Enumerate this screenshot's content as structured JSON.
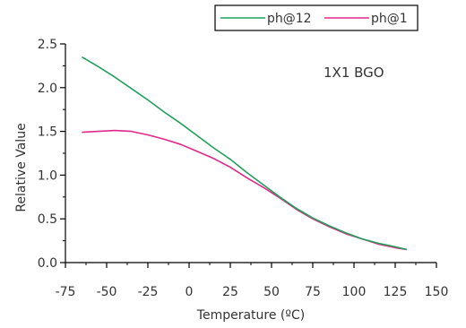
{
  "chart_data": {
    "type": "line",
    "annotation": "1X1 BGO",
    "xlabel": "Temperature (ºC)",
    "ylabel": "Relative Value",
    "xlim": [
      -75,
      150
    ],
    "ylim": [
      0,
      2.5
    ],
    "xticks": [
      "-75",
      "-50",
      "-25",
      "0",
      "25",
      "50",
      "75",
      "100",
      "125",
      "150"
    ],
    "yticks": [
      "0.0",
      "0.5",
      "1.0",
      "1.5",
      "2.0",
      "2.5"
    ],
    "grid": false,
    "legend_position": "top-right",
    "series": [
      {
        "name": "ph@12",
        "color": "#1fa05a",
        "x": [
          -65,
          -55,
          -45,
          -35,
          -25,
          -15,
          -5,
          5,
          15,
          25,
          35,
          45,
          55,
          65,
          75,
          85,
          95,
          105,
          115,
          125,
          132
        ],
        "y": [
          2.35,
          2.24,
          2.12,
          1.99,
          1.86,
          1.72,
          1.59,
          1.45,
          1.31,
          1.18,
          1.03,
          0.89,
          0.75,
          0.62,
          0.51,
          0.42,
          0.34,
          0.27,
          0.22,
          0.18,
          0.15
        ]
      },
      {
        "name": "ph@1",
        "color": "#e0288a",
        "x": [
          -65,
          -55,
          -45,
          -35,
          -25,
          -15,
          -5,
          5,
          15,
          25,
          35,
          45,
          55,
          65,
          75,
          85,
          95,
          105,
          115,
          125,
          132
        ],
        "y": [
          1.49,
          1.5,
          1.51,
          1.5,
          1.46,
          1.41,
          1.35,
          1.27,
          1.19,
          1.09,
          0.97,
          0.86,
          0.74,
          0.61,
          0.5,
          0.41,
          0.33,
          0.27,
          0.21,
          0.17,
          0.15
        ]
      }
    ]
  }
}
